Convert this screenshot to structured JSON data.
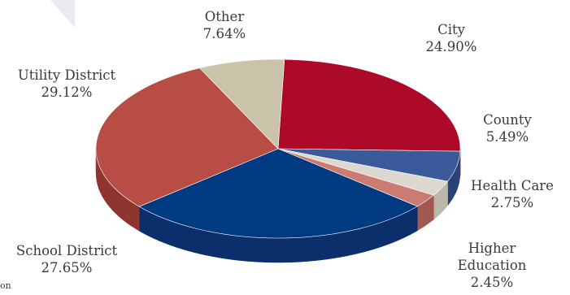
{
  "chart_data": {
    "type": "pie",
    "style": "3d-tilted",
    "slices": [
      {
        "name": "City",
        "value": 24.9,
        "label": "24.90%",
        "color": "#ad0a2a",
        "side_color": "#7c0a1f"
      },
      {
        "name": "County",
        "value": 5.49,
        "label": "5.49%",
        "color": "#3a5a99",
        "side_color": "#2a4275"
      },
      {
        "name": "Health Care",
        "value": 2.75,
        "label": "2.75%",
        "color": "#dcd8d0",
        "side_color": "#bdb7ab"
      },
      {
        "name": "Higher Education",
        "value": 2.45,
        "label": "2.45%",
        "color": "#cc7b72",
        "side_color": "#a25951"
      },
      {
        "name": "School District",
        "value": 27.65,
        "label": "27.65%",
        "color": "#003a80",
        "side_color": "#0b2f6b"
      },
      {
        "name": "Utility District",
        "value": 29.12,
        "label": "29.12%",
        "color": "#b84d45",
        "side_color": "#8e3530"
      },
      {
        "name": "Other",
        "value": 7.64,
        "label": "7.64%",
        "color": "#cbc2aa",
        "side_color": "#a99f87"
      }
    ]
  },
  "labels": {
    "other": {
      "name": "Other",
      "pct": "7.64%"
    },
    "city": {
      "name": "City",
      "pct": "24.90%"
    },
    "utility": {
      "name": "Utility District",
      "pct": "29.12%"
    },
    "county": {
      "name": "County",
      "pct": "5.49%"
    },
    "health": {
      "name": "Health Care",
      "pct": "2.75%"
    },
    "school": {
      "name": "School District",
      "pct": "27.65%"
    },
    "higher_line1": "Higher",
    "higher_line2": "Education",
    "higher_pct": "2.45%"
  },
  "corner_text": "on"
}
